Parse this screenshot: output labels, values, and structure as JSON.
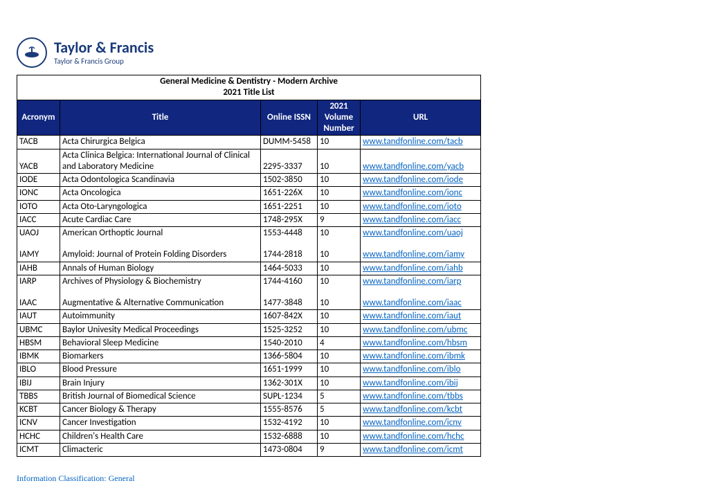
{
  "brand": {
    "name": "Taylor & Francis",
    "tagline": "Taylor & Francis Group"
  },
  "title_line1": "General Medicine & Dentistry - Modern Archive",
  "title_line2": "2021 Title List",
  "columns": {
    "acronym": "Acronym",
    "title": "Title",
    "issn": "Online ISSN",
    "vol": "2021 Volume Number",
    "url": "URL"
  },
  "colors": {
    "header_bg": "#10267f",
    "header_fg": "#ffffff",
    "link": "#0563c1",
    "brand": "#1a3a7a",
    "border": "#000000"
  },
  "footer": "Information Classification: General",
  "rows": [
    {
      "acr": "TACB",
      "title": "Acta Chirurgica Belgica",
      "issn": "DUMM-5458",
      "vol": "10",
      "url": "www.tandfonline.com/tacb"
    },
    {
      "acr": "YACB",
      "title": "Acta Clinica Belgica: International Journal of Clinical and Laboratory Medicine",
      "issn": "2295-3337",
      "vol": "10",
      "url": "www.tandfonline.com/yacb"
    },
    {
      "acr": "IODE",
      "title": "Acta Odontologica Scandinavia",
      "issn": "1502-3850",
      "vol": "10",
      "url": "www.tandfonline.com/iode"
    },
    {
      "acr": "IONC",
      "title": "Acta Oncologica",
      "issn": "1651-226X",
      "vol": "10",
      "url": "www.tandfonline.com/ionc"
    },
    {
      "acr": "IOTO",
      "title": "Acta Oto-Laryngologica",
      "issn": "1651-2251",
      "vol": "10",
      "url": "www.tandfonline.com/ioto"
    },
    {
      "acr": "IACC",
      "title": "Acute Cardiac Care",
      "issn": "1748-295X",
      "vol": "9",
      "url": "www.tandfonline.com/iacc"
    },
    {
      "acr": "UAOJ",
      "title": "American Orthoptic Journal",
      "issn": "1553-4448",
      "vol": "10",
      "url": "www.tandfonline.com/uaoj"
    },
    {
      "spacer": true
    },
    {
      "acr": "IAMY",
      "title": "Amyloid: Journal of Protein Folding Disorders",
      "issn": "1744-2818",
      "vol": "10",
      "url": "www.tandfonline.com/iamy",
      "join_above": true
    },
    {
      "acr": "IAHB",
      "title": "Annals of Human Biology",
      "issn": "1464-5033",
      "vol": "10",
      "url": "www.tandfonline.com/iahb"
    },
    {
      "acr": "IARP",
      "title": "Archives of Physiology & Biochemistry",
      "issn": "1744-4160",
      "vol": "10",
      "url": "www.tandfonline.com/iarp"
    },
    {
      "spacer": true
    },
    {
      "acr": "IAAC",
      "title": "Augmentative & Alternative Communication",
      "issn": "1477-3848",
      "vol": "10",
      "url": "www.tandfonline.com/iaac",
      "join_above": true
    },
    {
      "acr": "IAUT",
      "title": "Autoimmunity",
      "issn": "1607-842X",
      "vol": "10",
      "url": "www.tandfonline.com/iaut"
    },
    {
      "acr": "UBMC",
      "title": "Baylor Univesity Medical Proceedings",
      "issn": "1525-3252",
      "vol": "10",
      "url": "www.tandfonline.com/ubmc"
    },
    {
      "acr": "HBSM",
      "title": "Behavioral Sleep Medicine",
      "issn": "1540-2010",
      "vol": "4",
      "url": "www.tandfonline.com/hbsm"
    },
    {
      "acr": "IBMK",
      "title": "Biomarkers",
      "issn": "1366-5804",
      "vol": "10",
      "url": "www.tandfonline.com/ibmk"
    },
    {
      "acr": "IBLO",
      "title": "Blood Pressure",
      "issn": "1651-1999",
      "vol": "10",
      "url": "www.tandfonline.com/iblo"
    },
    {
      "acr": "IBIJ",
      "title": "Brain Injury",
      "issn": "1362-301X",
      "vol": "10",
      "url": "www.tandfonline.com/ibij"
    },
    {
      "acr": "TBBS",
      "title": "British Journal of Biomedical Science",
      "issn": "SUPL-1234",
      "vol": "5",
      "url": "www.tandfonline.com/tbbs"
    },
    {
      "acr": "KCBT",
      "title": "Cancer Biology & Therapy",
      "issn": "1555-8576",
      "vol": "5",
      "url": "www.tandfonline.com/kcbt"
    },
    {
      "acr": "ICNV",
      "title": "Cancer Investigation",
      "issn": "1532-4192",
      "vol": "10",
      "url": "www.tandfonline.com/icnv"
    },
    {
      "acr": "HCHC",
      "title": "Children's Health Care",
      "issn": "1532-6888",
      "vol": "10",
      "url": "www.tandfonline.com/hchc"
    },
    {
      "acr": "ICMT",
      "title": "Climacteric",
      "issn": "1473-0804",
      "vol": "9",
      "url": "www.tandfonline.com/icmt"
    }
  ]
}
